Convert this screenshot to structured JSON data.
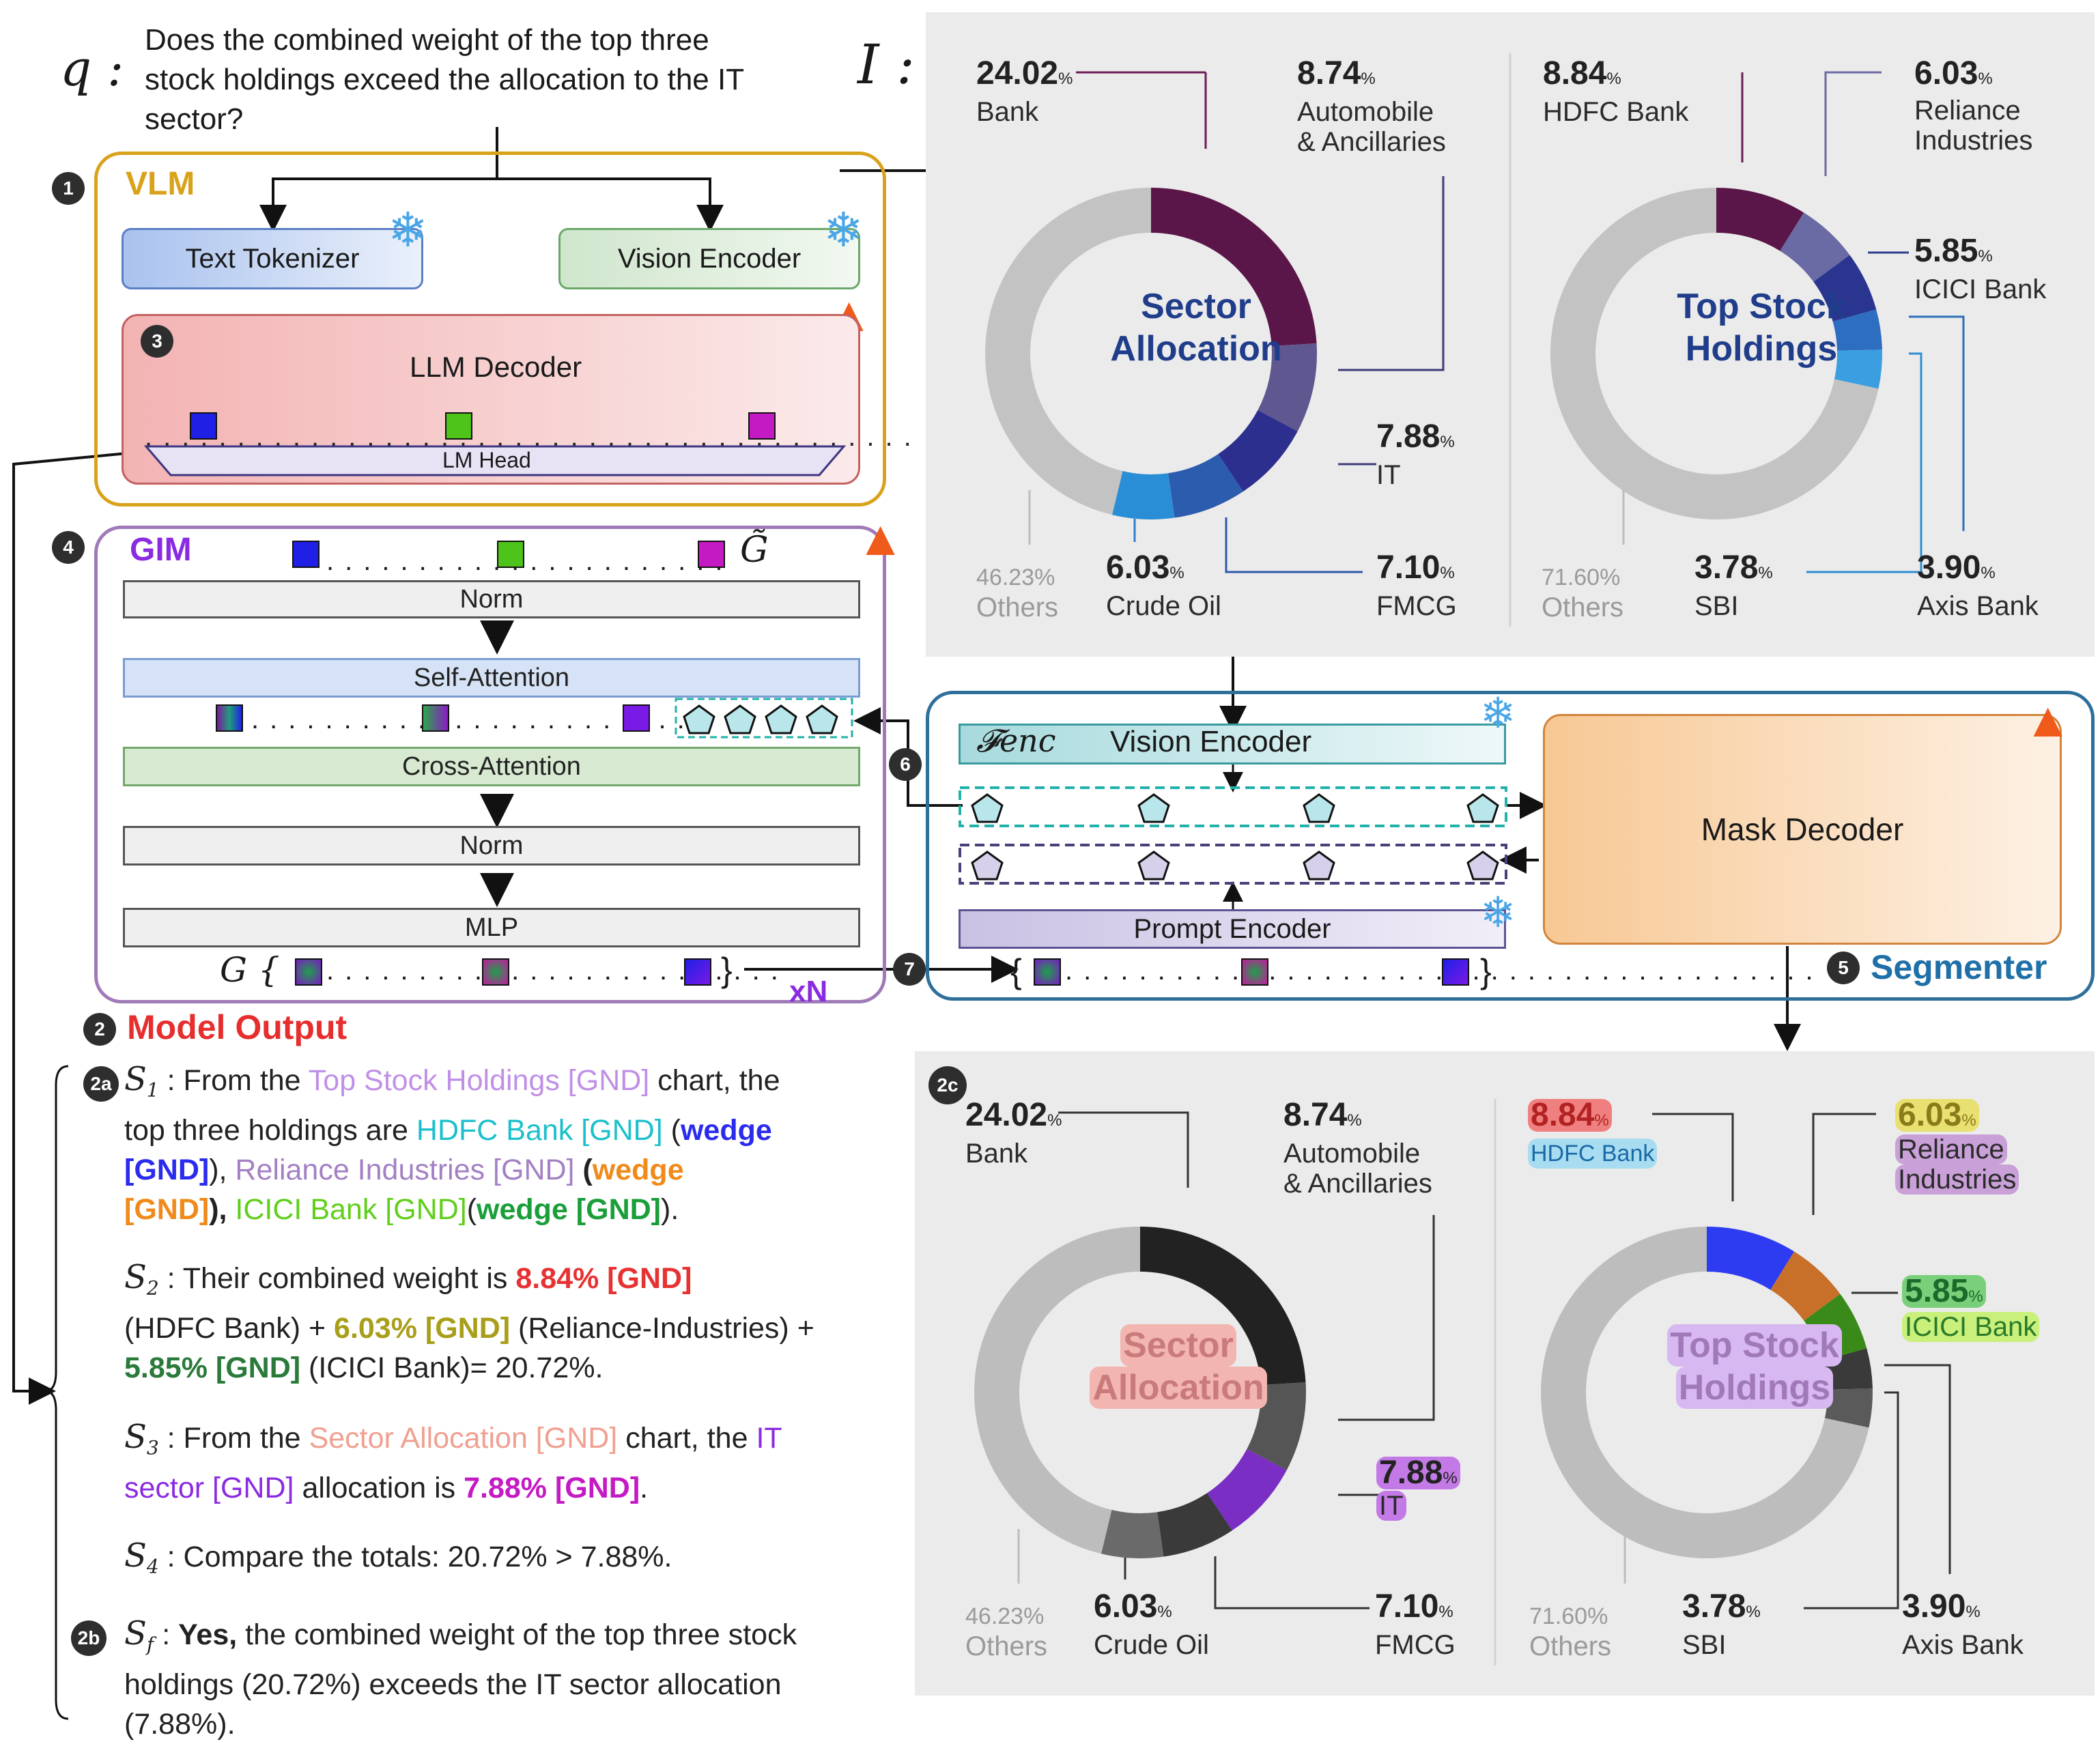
{
  "question": {
    "prefix": "q :",
    "text_lines": [
      "Does the combined weight of the top three",
      "stock holdings exceed the allocation to the IT",
      "sector?"
    ]
  },
  "image_prefix": "I :",
  "vlm": {
    "step": "1",
    "title": "VLM",
    "text_tokenizer": "Text Tokenizer",
    "vision_encoder": "Vision Encoder",
    "llm_step": "3",
    "llm_decoder": "LLM Decoder",
    "lm_head": "LM Head"
  },
  "gim": {
    "step": "4",
    "title": "GIM",
    "g_tilde": "G̃",
    "norm1": "Norm",
    "self_attention": "Self-Attention",
    "cross_attention": "Cross-Attention",
    "norm2": "Norm",
    "mlp": "MLP",
    "g_label": "G {",
    "g_close": "}",
    "repeat": "xN"
  },
  "arrows": {
    "six": "6",
    "seven": "7"
  },
  "segmenter": {
    "step": "5",
    "title": "Segmenter",
    "f_enc": "𝓕enc",
    "vision_encoder": "Vision Encoder",
    "prompt_encoder": "Prompt Encoder",
    "mask_decoder": "Mask Decoder",
    "open_brace": "{",
    "close_brace": "}"
  },
  "model_output": {
    "step": "2",
    "title": "Model Output",
    "step_2a": "2a",
    "step_2b": "2b",
    "s1_label": "S",
    "s1_sub": "1",
    "s1": {
      "t1": " : From the ",
      "h1": "Top Stock Holdings [GND]",
      "t2": " chart, the",
      "t3": "top three holdings are ",
      "h2": "HDFC Bank [GND]",
      "t4": " (",
      "h3": "wedge",
      "h3b": "[GND]",
      "t5": "), ",
      "h4": "Reliance Industries [GND]",
      "t6": " (",
      "h5": "wedge",
      "h5b": "[GND]",
      "t7": "), ",
      "h6": "ICICI Bank [GND]",
      "t8": "(",
      "h7": "wedge [GND]",
      "t9": ")."
    },
    "s2_sub": "2",
    "s2": {
      "t1": " : Their combined weight is ",
      "h1": "8.84% [GND]",
      "t2": "(HDFC Bank) + ",
      "h2": "6.03% [GND]",
      "t3": " (Reliance-Industries) +",
      "h3": "5.85% [GND]",
      "t4": " (ICICI Bank)= 20.72%."
    },
    "s3_sub": "3",
    "s3": {
      "t1": " : From the ",
      "h1": "Sector Allocation [GND]",
      "t2": " chart, the ",
      "h2": "IT",
      "h3": "sector [GND]",
      "t3": " allocation is ",
      "h4": "7.88% [GND]",
      "t4": "."
    },
    "s4_sub": "4",
    "s4": " : Compare the totals: 20.72% > 7.88%.",
    "sf_sub": "f",
    "sf": {
      "t1": " : ",
      "b1": "Yes,",
      "t2": " the combined weight of the top three stock",
      "t3": "holdings (20.72%) exceeds the IT sector allocation",
      "t4": "(7.88%)."
    }
  },
  "panel_2c_step": "2c",
  "charts_input": {
    "sector": {
      "center": [
        "Sector",
        "Allocation"
      ],
      "bank_pct": "24.02",
      "bank": "Bank",
      "auto_pct": "8.74",
      "auto": [
        "Automobile",
        "& Ancillaries"
      ],
      "it_pct": "7.88",
      "it": "IT",
      "fmcg_pct": "7.10",
      "fmcg": "FMCG",
      "crude_pct": "6.03",
      "crude": "Crude Oil",
      "others_pct": "46.23%",
      "others": "Others"
    },
    "holdings": {
      "center": [
        "Top Stock",
        "Holdings"
      ],
      "hdfc_pct": "8.84",
      "hdfc": "HDFC Bank",
      "rel_pct": "6.03",
      "rel": [
        "Reliance",
        "Industries"
      ],
      "icici_pct": "5.85",
      "icici": "ICICI Bank",
      "axis_pct": "3.90",
      "axis": "Axis Bank",
      "sbi_pct": "3.78",
      "sbi": "SBI",
      "others_pct": "71.60%",
      "others": "Others"
    },
    "pct_sign": "%"
  },
  "colors": {
    "vlm_border": "#d9a21b",
    "gim_border": "#a07ab8",
    "segmenter_border": "#2f6f9b",
    "model_output": "#e62e2e",
    "gim_title": "#8a2be2",
    "vlm_title": "#d9a21b",
    "segmenter_title": "#1f6fa8"
  },
  "chart_data": [
    {
      "type": "pie",
      "title": "Sector Allocation",
      "categories": [
        "Bank",
        "Automobile & Ancillaries",
        "IT",
        "FMCG",
        "Crude Oil",
        "Others"
      ],
      "values": [
        24.02,
        8.74,
        7.88,
        7.1,
        6.03,
        46.23
      ]
    },
    {
      "type": "pie",
      "title": "Top Stock Holdings",
      "categories": [
        "HDFC Bank",
        "Reliance Industries",
        "ICICI Bank",
        "Axis Bank",
        "SBI",
        "Others"
      ],
      "values": [
        8.84,
        6.03,
        5.85,
        3.9,
        3.78,
        71.6
      ]
    }
  ]
}
